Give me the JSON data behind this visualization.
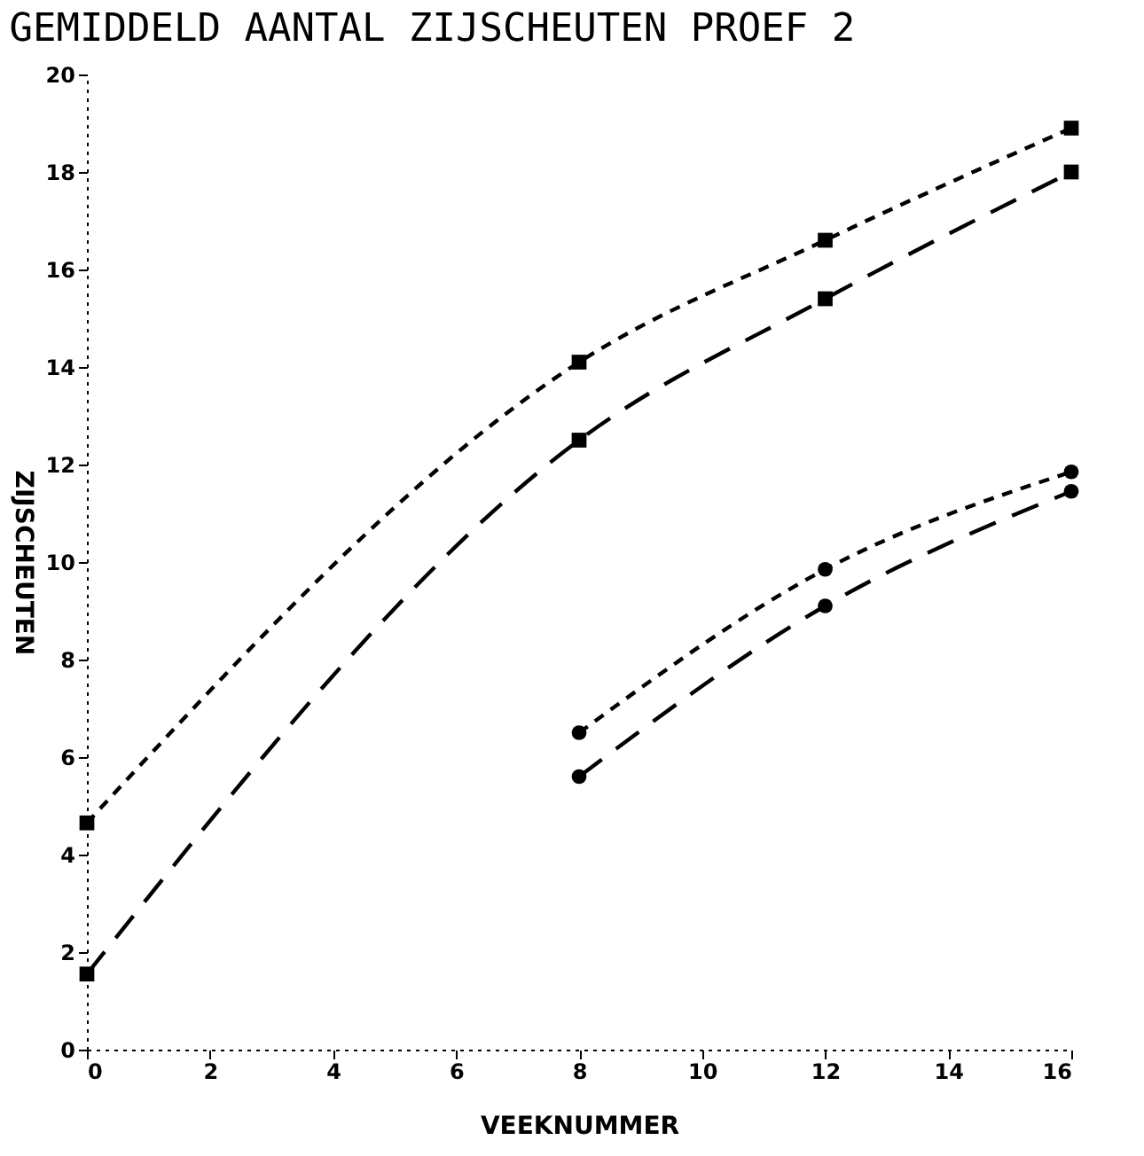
{
  "chart_data": {
    "type": "line",
    "title": "GEMIDDELD AANTAL ZIJSCHEUTEN PROEF 2",
    "xlabel": "VEEKNUMMER",
    "ylabel": "ZIJSCHEUTEN",
    "x": [
      0,
      8,
      12,
      16
    ],
    "series": [
      {
        "color": "#000000",
        "values": [
          4.65,
          14.1,
          16.6,
          18.9
        ],
        "line_style": "dotted",
        "marker": "square"
      },
      {
        "color": "#000000",
        "values": [
          1.55,
          12.5,
          15.4,
          18.0
        ],
        "line_style": "dashed",
        "marker": "square"
      },
      {
        "color": "#000000",
        "x": [
          8,
          12,
          16
        ],
        "values": [
          6.5,
          9.85,
          11.85
        ],
        "line_style": "dotted",
        "marker": "circle"
      },
      {
        "color": "#000000",
        "x": [
          8,
          12,
          16
        ],
        "values": [
          5.6,
          9.1,
          11.45
        ],
        "line_style": "dashed",
        "marker": "circle"
      }
    ],
    "xlim": [
      0,
      16
    ],
    "xticks": [
      0,
      2,
      4,
      6,
      8,
      10,
      12,
      14,
      16
    ],
    "ylim": [
      0,
      20
    ],
    "yticks": [
      0,
      2,
      4,
      6,
      8,
      10,
      12,
      14,
      16,
      18,
      20
    ],
    "grid": false
  }
}
